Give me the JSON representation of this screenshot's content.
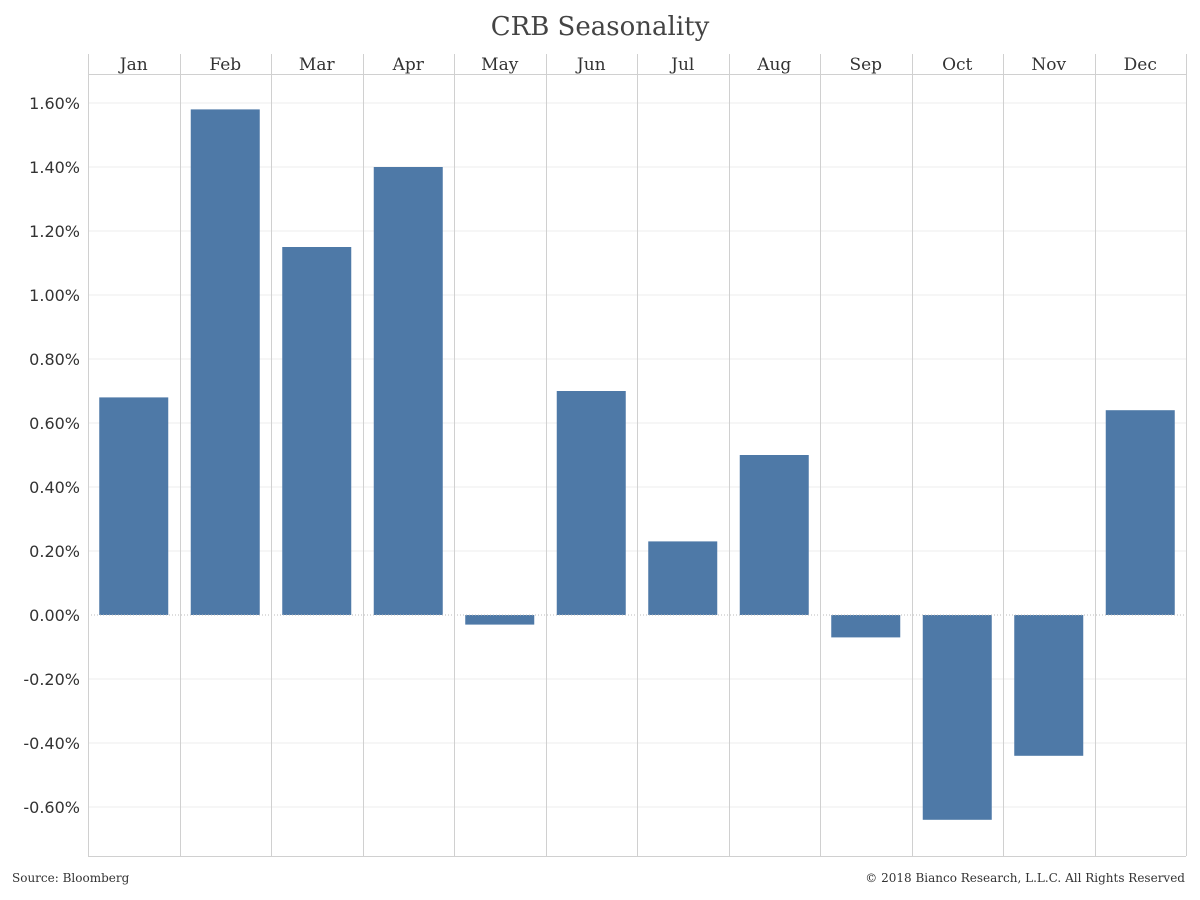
{
  "chart_data": {
    "type": "bar",
    "title": "CRB Seasonality",
    "categories": [
      "Jan",
      "Feb",
      "Mar",
      "Apr",
      "May",
      "Jun",
      "Jul",
      "Aug",
      "Sep",
      "Oct",
      "Nov",
      "Dec"
    ],
    "values": [
      0.68,
      1.58,
      1.15,
      1.4,
      -0.03,
      0.7,
      0.23,
      0.5,
      -0.07,
      -0.64,
      -0.44,
      0.64
    ],
    "value_unit": "%",
    "xlabel": "",
    "ylabel": "",
    "ylim": [
      -0.75,
      1.69
    ],
    "y_ticks": [
      1.6,
      1.4,
      1.2,
      1.0,
      0.8,
      0.6,
      0.4,
      0.2,
      0.0,
      -0.2,
      -0.4,
      -0.6
    ],
    "y_tick_labels": [
      "1.60%",
      "1.40%",
      "1.20%",
      "1.00%",
      "0.80%",
      "0.60%",
      "0.40%",
      "0.20%",
      "0.00%",
      "-0.20%",
      "-0.40%",
      "-0.60%"
    ],
    "x_axis_position": "top",
    "grid": true,
    "legend": "none",
    "bar_color": "#4e79a7",
    "grid_color": "#ececec",
    "divider_color": "#d0d0d0"
  },
  "footer": {
    "source": "Source: Bloomberg",
    "copyright": "© 2018 Bianco Research, L.L.C. All Rights Reserved"
  }
}
